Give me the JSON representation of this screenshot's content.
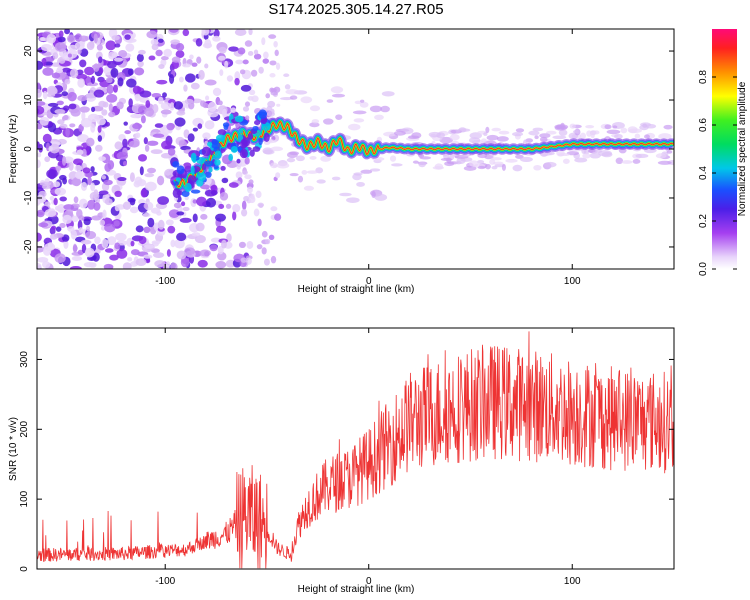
{
  "title": "S174.2025.305.14.27.R05",
  "chart_data": [
    {
      "type": "heatmap",
      "name": "spectrogram",
      "xlabel": "Height of straight line (km)",
      "ylabel": "Frequency (Hz)",
      "xlim": [
        -163,
        150
      ],
      "ylim": [
        -24.5,
        24.5
      ],
      "xticks": [
        -100,
        0,
        100
      ],
      "yticks": [
        -20,
        -10,
        0,
        10,
        20
      ],
      "colorbar": {
        "label": "Normalized spectral amplitude",
        "range": [
          0,
          1
        ],
        "ticks": [
          0.0,
          0.2,
          0.4,
          0.6,
          0.8
        ],
        "tick_labels": [
          "0.0",
          "0.2",
          "0.4",
          "0.6",
          "0.8"
        ]
      },
      "ridge": {
        "x": [
          -90,
          -80,
          -70,
          -62,
          -55,
          -50,
          -45,
          -40,
          -35,
          -30,
          -25,
          -20,
          -15,
          -10,
          -5,
          0,
          5,
          10,
          20,
          40,
          60,
          80,
          100,
          150
        ],
        "freq": [
          -7,
          -3,
          2,
          3,
          2.5,
          4,
          5,
          4.5,
          2,
          0.5,
          1.5,
          0,
          2,
          -0.5,
          0.5,
          -0.5,
          0,
          0.3,
          0,
          0,
          0,
          0,
          1,
          1
        ]
      }
    },
    {
      "type": "line",
      "name": "snr",
      "xlabel": "Height of straight line (km)",
      "ylabel": "SNR (10 * v/v)",
      "xlim": [
        -163,
        150
      ],
      "ylim": [
        0,
        345
      ],
      "xticks": [
        -100,
        0,
        100
      ],
      "yticks": [
        0,
        100,
        200,
        300
      ],
      "color": "#ee3333",
      "trend": {
        "x": [
          -163,
          -120,
          -90,
          -80,
          -70,
          -60,
          -50,
          -45,
          -38,
          -35,
          -30,
          -20,
          -10,
          0,
          10,
          20,
          40,
          60,
          80,
          100,
          120,
          150
        ],
        "y": [
          20,
          22,
          28,
          40,
          50,
          80,
          60,
          30,
          20,
          60,
          90,
          120,
          130,
          150,
          180,
          210,
          230,
          240,
          235,
          225,
          215,
          210
        ]
      }
    }
  ]
}
